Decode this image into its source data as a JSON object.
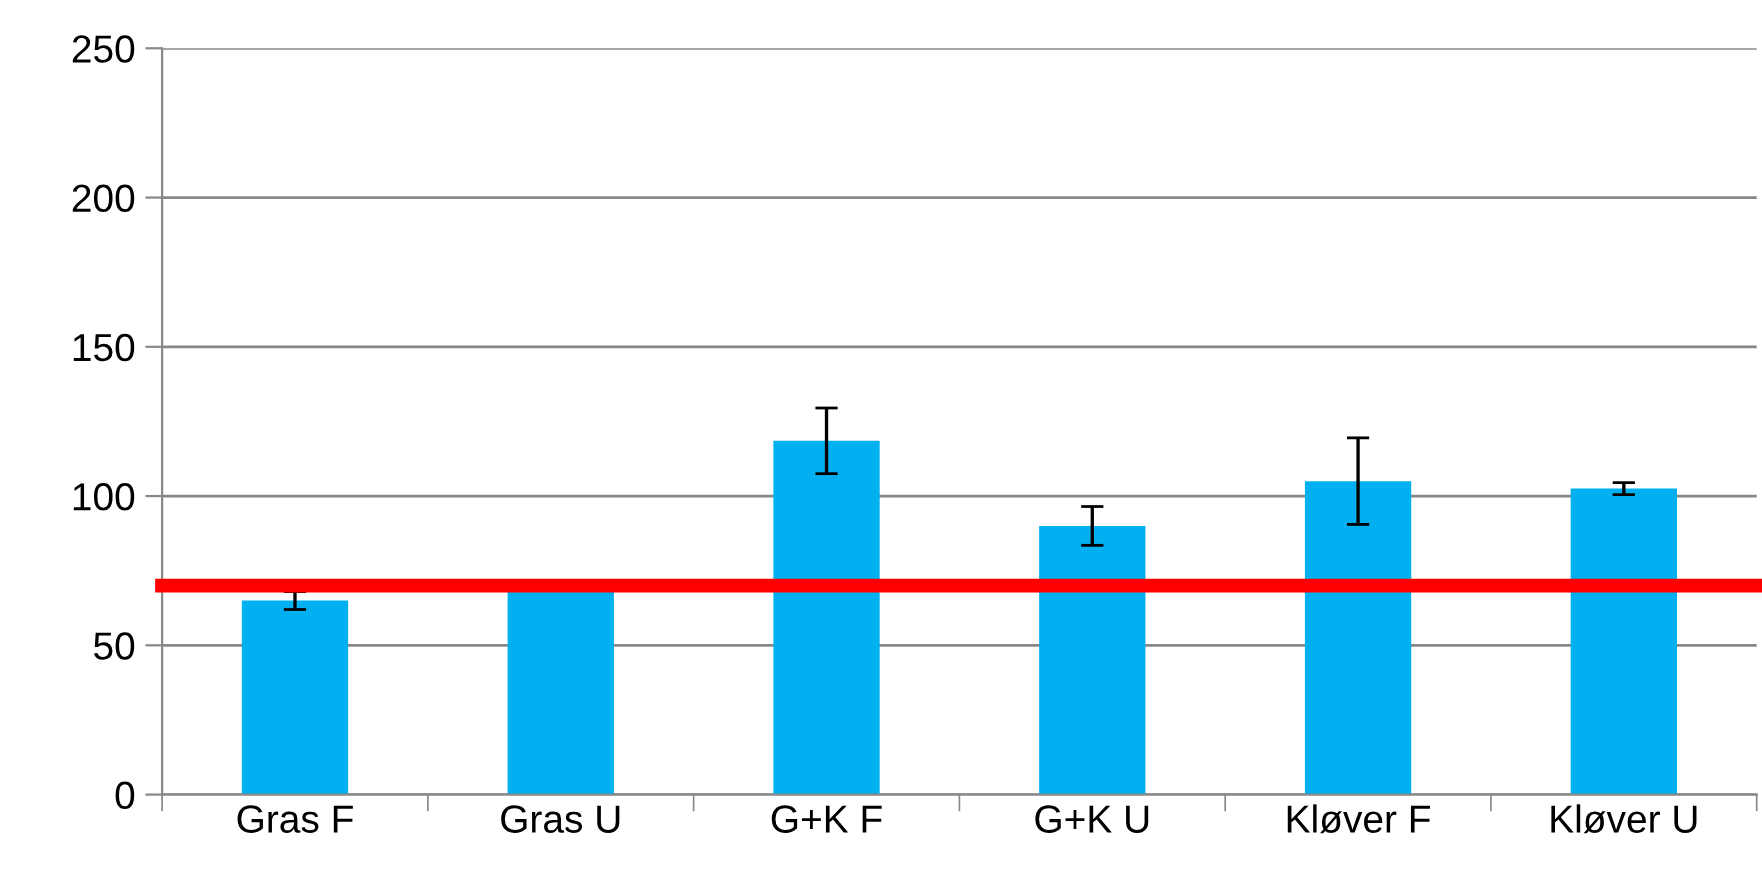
{
  "chart_data": {
    "type": "bar",
    "categories": [
      "Gras F",
      "Gras U",
      "G+K F",
      "G+K U",
      "Kløver F",
      "Kløver U"
    ],
    "values": [
      65,
      68,
      118.5,
      90,
      105,
      102.5
    ],
    "errors": [
      3,
      null,
      11,
      6.5,
      14.5,
      2
    ],
    "color": "#00b0f0",
    "ylim": [
      0,
      250
    ],
    "yticks": [
      0,
      50,
      100,
      150,
      200,
      250
    ],
    "grid": "y",
    "ref_lines": [
      {
        "axis": "y",
        "value": 70,
        "color": "#ff0000"
      }
    ]
  }
}
